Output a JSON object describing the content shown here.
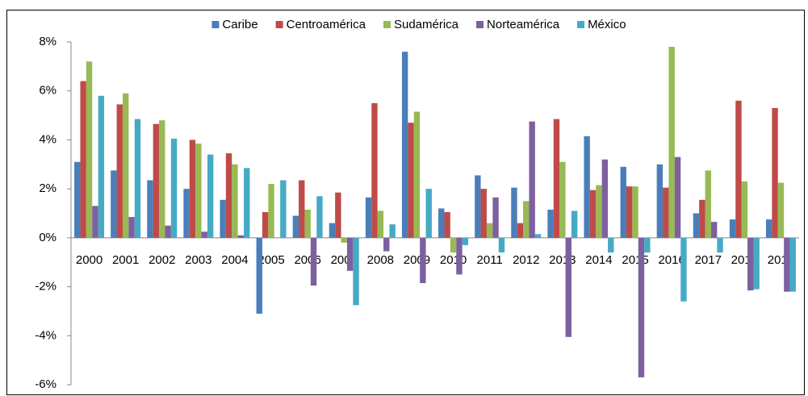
{
  "chart_data": {
    "type": "bar",
    "categories": [
      "2000",
      "2001",
      "2002",
      "2003",
      "2004",
      "2005",
      "2006",
      "2007",
      "2008",
      "2009",
      "2010",
      "2011",
      "2012",
      "2013",
      "2014",
      "2015",
      "2016",
      "2017",
      "2018",
      "2019"
    ],
    "series": [
      {
        "name": "Caribe",
        "color": "#4a7ebb",
        "values": [
          3.1,
          2.75,
          2.35,
          2.0,
          1.55,
          -3.1,
          0.9,
          0.6,
          1.65,
          7.6,
          1.2,
          2.55,
          2.05,
          1.15,
          4.15,
          2.9,
          3.0,
          1.0,
          0.75,
          0.75
        ]
      },
      {
        "name": "Centroamérica",
        "color": "#be4b48",
        "values": [
          6.4,
          5.45,
          4.65,
          4.0,
          3.45,
          1.05,
          2.35,
          1.85,
          5.5,
          4.7,
          1.05,
          2.0,
          0.6,
          4.85,
          1.95,
          2.1,
          2.05,
          1.55,
          5.6,
          5.3
        ]
      },
      {
        "name": "Sudamérica",
        "color": "#98b954",
        "values": [
          7.2,
          5.9,
          4.8,
          3.85,
          3.0,
          2.2,
          1.15,
          -0.2,
          1.1,
          5.15,
          -0.6,
          0.6,
          1.5,
          3.1,
          2.15,
          2.1,
          7.8,
          2.75,
          2.3,
          2.25
        ]
      },
      {
        "name": "Norteamérica",
        "color": "#7d60a0",
        "values": [
          1.3,
          0.85,
          0.5,
          0.25,
          0.1,
          0,
          -1.95,
          -1.35,
          -0.55,
          -1.85,
          -1.5,
          1.65,
          4.75,
          -4.05,
          3.2,
          -5.7,
          3.3,
          0.65,
          -2.15,
          -2.2
        ]
      },
      {
        "name": "México",
        "color": "#46aac5",
        "values": [
          5.8,
          4.85,
          4.05,
          3.4,
          2.85,
          2.35,
          1.7,
          -2.75,
          0.55,
          2.0,
          -0.3,
          -0.6,
          0.15,
          1.1,
          -0.6,
          -0.6,
          -2.6,
          -0.6,
          -2.1,
          -2.2
        ]
      }
    ],
    "ylim": [
      -6,
      8
    ],
    "yticks": [
      {
        "value": -6,
        "label": "-6%"
      },
      {
        "value": -4,
        "label": "-4%"
      },
      {
        "value": -2,
        "label": "-2%"
      },
      {
        "value": 0,
        "label": "0%"
      },
      {
        "value": 2,
        "label": "2%"
      },
      {
        "value": 4,
        "label": "4%"
      },
      {
        "value": 6,
        "label": "6%"
      },
      {
        "value": 8,
        "label": "8%"
      }
    ],
    "legend": "top"
  }
}
